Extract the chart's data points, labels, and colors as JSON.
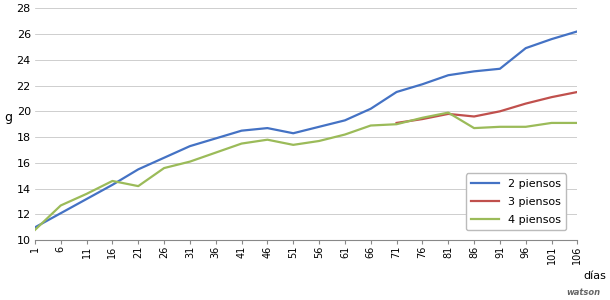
{
  "x_ticks": [
    1,
    6,
    11,
    16,
    21,
    26,
    31,
    36,
    41,
    46,
    51,
    56,
    61,
    66,
    71,
    76,
    81,
    86,
    91,
    96,
    101,
    106
  ],
  "line_2piensos": {
    "x": [
      1,
      6,
      11,
      16,
      21,
      26,
      31,
      36,
      41,
      46,
      51,
      56,
      61,
      66,
      71,
      76,
      81,
      86,
      91,
      96,
      101,
      106
    ],
    "y": [
      11.0,
      12.1,
      13.2,
      14.3,
      15.5,
      16.4,
      17.3,
      17.9,
      18.5,
      18.7,
      18.3,
      18.8,
      19.3,
      20.2,
      21.5,
      22.1,
      22.8,
      23.1,
      23.3,
      24.9,
      25.6,
      26.2
    ],
    "color": "#4472C4",
    "label": "2 piensos",
    "linewidth": 1.6
  },
  "line_3piensos": {
    "x": [
      71,
      76,
      81,
      86,
      91,
      96,
      101,
      106
    ],
    "y": [
      19.1,
      19.4,
      19.8,
      19.6,
      20.0,
      20.6,
      21.1,
      21.5
    ],
    "color": "#C0504D",
    "label": "3 piensos",
    "linewidth": 1.6
  },
  "line_4piensos": {
    "x": [
      1,
      6,
      11,
      16,
      21,
      26,
      31,
      36,
      41,
      46,
      51,
      56,
      61,
      66,
      71,
      76,
      81,
      86,
      91,
      96,
      101,
      106
    ],
    "y": [
      10.8,
      12.7,
      13.6,
      14.6,
      14.2,
      15.6,
      16.1,
      16.8,
      17.5,
      17.8,
      17.4,
      17.7,
      18.2,
      18.9,
      19.0,
      19.5,
      19.9,
      18.7,
      18.8,
      18.8,
      19.1,
      19.1
    ],
    "color": "#9BBB59",
    "label": "4 piensos",
    "linewidth": 1.6
  },
  "ylim": [
    10,
    28
  ],
  "yticks": [
    10,
    12,
    14,
    16,
    18,
    20,
    22,
    24,
    26,
    28
  ],
  "ylabel": "g",
  "xlabel": "días",
  "background_color": "#FFFFFF",
  "grid_color": "#BBBBBB",
  "fig_width": 6.1,
  "fig_height": 3.0,
  "dpi": 100
}
